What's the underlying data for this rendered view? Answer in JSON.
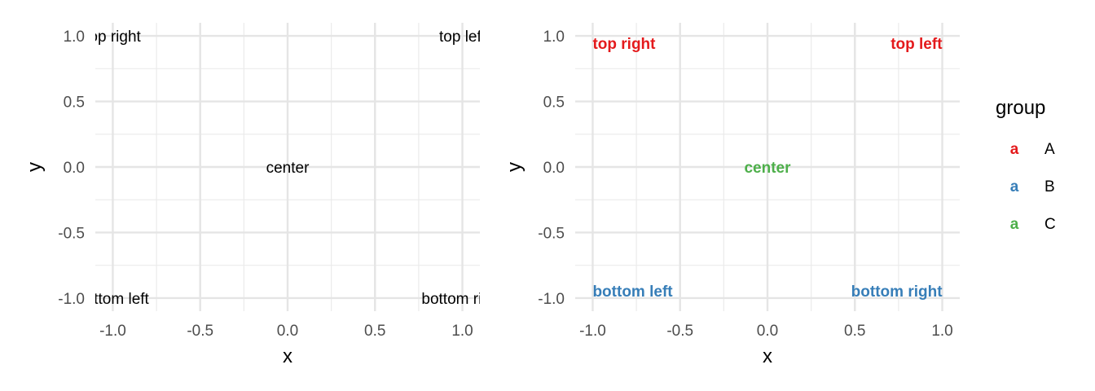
{
  "chart_data": [
    {
      "type": "scatter",
      "title": "",
      "xlabel": "x",
      "ylabel": "y",
      "xlim": [
        -1.1,
        1.1
      ],
      "ylim": [
        -1.1,
        1.1
      ],
      "x_ticks": [
        "-1.0",
        "-0.5",
        "0.0",
        "0.5",
        "1.0"
      ],
      "y_ticks": [
        "1.0",
        "0.5",
        "0.0",
        "-0.5",
        "-1.0"
      ],
      "grid": true,
      "points": [
        {
          "x": -1,
          "y": 1,
          "label": "top right",
          "shown_text": "p right"
        },
        {
          "x": 1,
          "y": 1,
          "label": "top left",
          "shown_text": "top le"
        },
        {
          "x": 0,
          "y": 0,
          "label": "center",
          "shown_text": "center"
        },
        {
          "x": -1,
          "y": -1,
          "label": "bottom left",
          "shown_text": "tom left"
        },
        {
          "x": 1,
          "y": -1,
          "label": "bottom right",
          "shown_text": "bottom r"
        }
      ]
    },
    {
      "type": "scatter",
      "title": "",
      "xlabel": "x",
      "ylabel": "y",
      "xlim": [
        -1.1,
        1.1
      ],
      "ylim": [
        -1.1,
        1.1
      ],
      "x_ticks": [
        "-1.0",
        "-0.5",
        "0.0",
        "0.5",
        "1.0"
      ],
      "y_ticks": [
        "1.0",
        "0.5",
        "0.0",
        "-0.5",
        "-1.0"
      ],
      "grid": true,
      "points": [
        {
          "x": -1,
          "y": 1,
          "label": "top right",
          "group": "A"
        },
        {
          "x": 1,
          "y": 1,
          "label": "top left",
          "group": "A"
        },
        {
          "x": 0,
          "y": 0,
          "label": "center",
          "group": "C"
        },
        {
          "x": -1,
          "y": -1,
          "label": "bottom left",
          "group": "B"
        },
        {
          "x": 1,
          "y": -1,
          "label": "bottom right",
          "group": "B"
        }
      ],
      "legend": {
        "title": "group",
        "position": "right",
        "key_glyph": "a",
        "entries": [
          {
            "name": "A",
            "color": "#E41A1C"
          },
          {
            "name": "B",
            "color": "#377EB8"
          },
          {
            "name": "C",
            "color": "#4DAF4A"
          }
        ]
      }
    }
  ]
}
